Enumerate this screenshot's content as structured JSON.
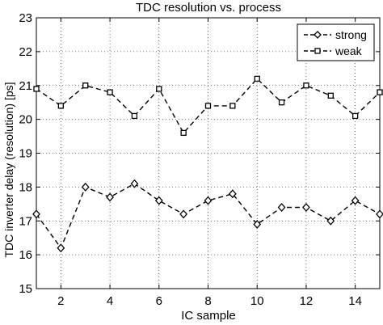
{
  "chart_data": {
    "type": "line",
    "title": "TDC resolution vs. process",
    "xlabel": "IC sample",
    "ylabel": "TDC inverter delay (resolution) [ps]",
    "xlim": [
      1,
      15
    ],
    "ylim": [
      15,
      23
    ],
    "xticks": [
      2,
      4,
      6,
      8,
      10,
      12,
      14
    ],
    "yticks": [
      15,
      16,
      17,
      18,
      19,
      20,
      21,
      22,
      23
    ],
    "grid": true,
    "legend_position": "top-right",
    "x": [
      1,
      2,
      3,
      4,
      5,
      6,
      7,
      8,
      9,
      10,
      11,
      12,
      13,
      14,
      15
    ],
    "series": [
      {
        "name": "strong",
        "marker": "diamond",
        "line_style": "dashed",
        "color": "#000000",
        "values": [
          17.2,
          16.2,
          18.0,
          17.7,
          18.1,
          17.6,
          17.2,
          17.6,
          17.8,
          16.9,
          17.4,
          17.4,
          17.0,
          17.6,
          17.2
        ]
      },
      {
        "name": "weak",
        "marker": "square",
        "line_style": "dashed",
        "color": "#000000",
        "values": [
          20.9,
          20.4,
          21.0,
          20.8,
          20.1,
          20.9,
          19.6,
          20.4,
          20.4,
          21.2,
          20.5,
          21.0,
          20.7,
          20.1,
          20.8
        ]
      }
    ]
  }
}
